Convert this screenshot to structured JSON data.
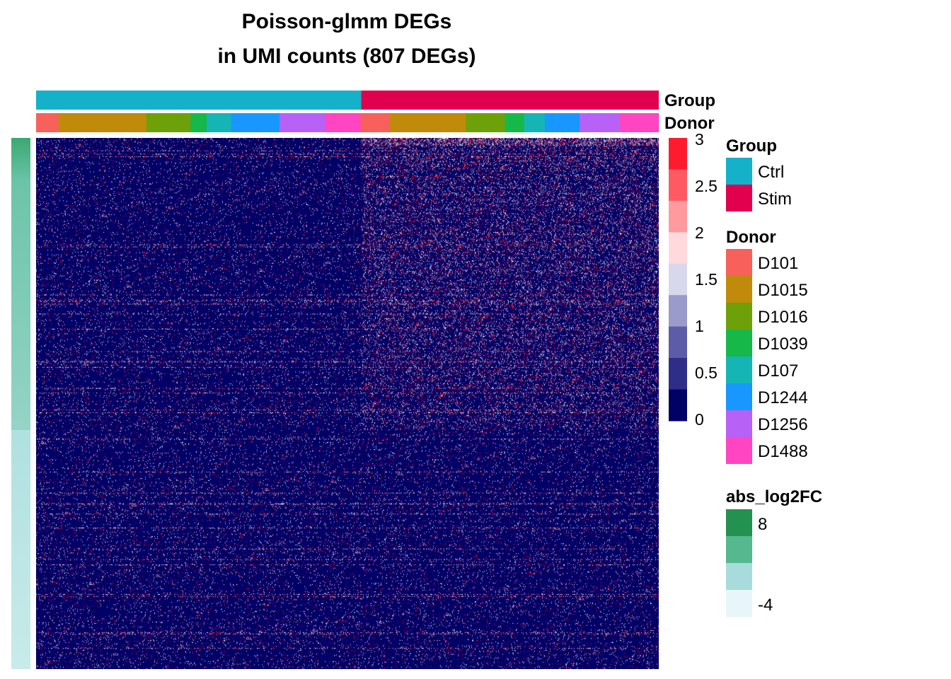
{
  "chart_data": {
    "type": "heatmap",
    "title_line1": "Poisson-glmm DEGs",
    "title_line2": "in UMI counts (807 DEGs)",
    "num_degs": 807,
    "top_annotations": [
      {
        "name": "Group",
        "order": [
          "Ctrl",
          "Stim"
        ],
        "fractions": [
          0.522,
          0.478
        ]
      },
      {
        "name": "Donor",
        "order": [
          "D101",
          "D1015",
          "D1016",
          "D1039",
          "D107",
          "D1244",
          "D1256",
          "D1488",
          "D101",
          "D1015",
          "D1016",
          "D1039",
          "D107",
          "D1244",
          "D1256",
          "D1488"
        ],
        "fractions": [
          0.036,
          0.141,
          0.071,
          0.026,
          0.039,
          0.078,
          0.073,
          0.057,
          0.047,
          0.122,
          0.063,
          0.031,
          0.033,
          0.056,
          0.064,
          0.063
        ]
      }
    ],
    "value_legend": {
      "ticks": [
        "3",
        "2.5",
        "2",
        "1.5",
        "1",
        "0.5",
        "0"
      ],
      "range": [
        0,
        3
      ],
      "colors": [
        "#ff1a2d",
        "#ff5a63",
        "#ff9a9e",
        "#ffd9db",
        "#d8d8ec",
        "#9a9acb",
        "#5c5ca8",
        "#2e2e88",
        "#000066"
      ]
    },
    "legends": [
      {
        "name": "Group",
        "items": [
          {
            "label": "Ctrl",
            "color": "#14b1c9"
          },
          {
            "label": "Stim",
            "color": "#e0004d"
          }
        ]
      },
      {
        "name": "Donor",
        "items": [
          {
            "label": "D101",
            "color": "#f8605c"
          },
          {
            "label": "D1015",
            "color": "#c08a0a"
          },
          {
            "label": "D1016",
            "color": "#6ea00a"
          },
          {
            "label": "D1039",
            "color": "#16b84a"
          },
          {
            "label": "D107",
            "color": "#16b5b5"
          },
          {
            "label": "D1244",
            "color": "#1797ff"
          },
          {
            "label": "D1256",
            "color": "#b761f7"
          },
          {
            "label": "D1488",
            "color": "#ff45c1"
          }
        ]
      },
      {
        "name": "abs_log2FC",
        "top_label": "8",
        "bottom_label": "-4",
        "colors": [
          "#239150",
          "#56b88f",
          "#a8dcdc",
          "#e8f6f9"
        ]
      }
    ],
    "row_annotation": {
      "name": "abs_log2FC",
      "split_fraction": 0.55
    },
    "colors": {
      "background": "#000066",
      "high": "#ff1a2d",
      "mid": "#ffffff"
    }
  }
}
